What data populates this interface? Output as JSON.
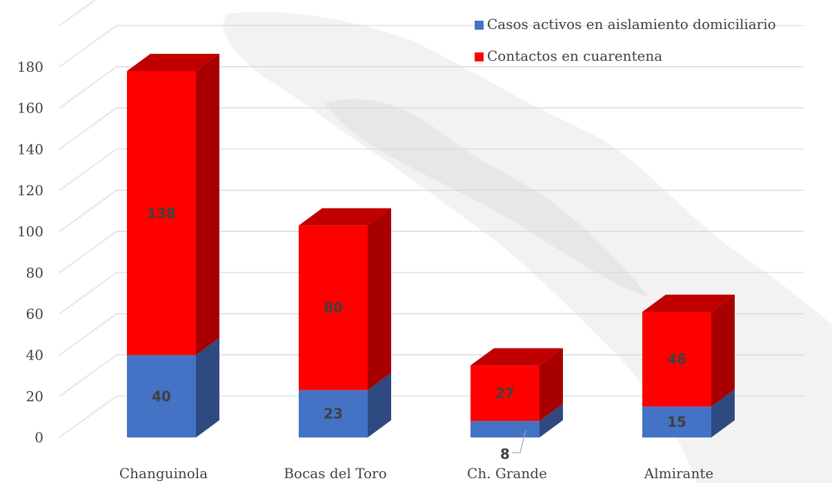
{
  "chart_data": {
    "type": "bar",
    "stacked": true,
    "style": "3d",
    "categories": [
      "Changuinola",
      "Bocas del Toro",
      "Ch. Grande",
      "Almirante"
    ],
    "series": [
      {
        "name": "Casos activos en aislamiento domiciliario",
        "values": [
          40,
          23,
          8,
          15
        ],
        "color": "#4472C4",
        "side_color": "#2E4A80"
      },
      {
        "name": "Contactos en cuarentena",
        "values": [
          138,
          80,
          27,
          46
        ],
        "color": "#FF0000",
        "side_color": "#A80000",
        "top_color": "#C00000"
      }
    ],
    "data_labels": {
      "series_0": [
        "40",
        "23",
        "8",
        "15"
      ],
      "series_1": [
        "138",
        "80",
        "27",
        "46"
      ]
    },
    "y_ticks": [
      "0",
      "20",
      "40",
      "60",
      "80",
      "100",
      "120",
      "140",
      "160",
      "180"
    ],
    "ylim": [
      0,
      180
    ],
    "grid": true,
    "legend_position": "top-right",
    "background_watermark": "faint grey map shape"
  }
}
